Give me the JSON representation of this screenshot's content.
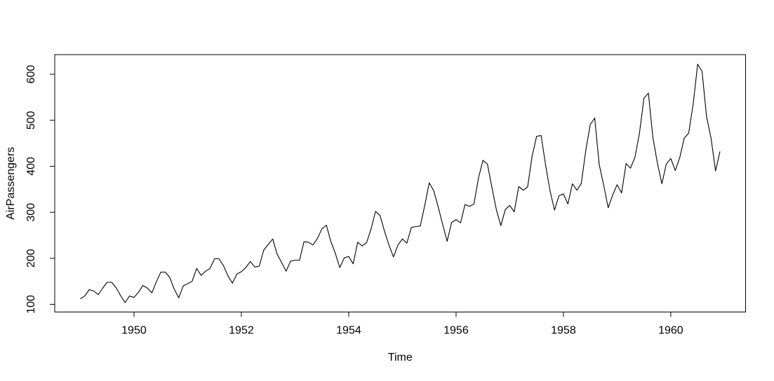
{
  "page": {
    "background": "#ffffff"
  },
  "chart_data": {
    "type": "line",
    "title": "",
    "xlabel": "Time",
    "ylabel": "AirPassengers",
    "x_start": 1949,
    "x_frequency": "monthly",
    "series": [
      {
        "name": "AirPassengers",
        "values": [
          112,
          118,
          132,
          129,
          121,
          135,
          148,
          148,
          136,
          119,
          104,
          118,
          115,
          126,
          141,
          135,
          125,
          149,
          170,
          170,
          158,
          133,
          114,
          140,
          145,
          150,
          178,
          163,
          172,
          178,
          199,
          199,
          184,
          162,
          146,
          166,
          171,
          180,
          193,
          181,
          183,
          218,
          230,
          242,
          209,
          191,
          172,
          194,
          196,
          196,
          236,
          235,
          229,
          243,
          264,
          272,
          237,
          211,
          180,
          201,
          204,
          188,
          235,
          227,
          234,
          264,
          302,
          293,
          259,
          229,
          203,
          229,
          242,
          233,
          267,
          269,
          270,
          315,
          364,
          347,
          312,
          274,
          237,
          278,
          284,
          277,
          317,
          313,
          318,
          374,
          413,
          405,
          355,
          306,
          271,
          306,
          315,
          301,
          356,
          348,
          355,
          422,
          465,
          467,
          404,
          347,
          305,
          336,
          340,
          318,
          362,
          348,
          363,
          435,
          491,
          505,
          404,
          359,
          310,
          337,
          360,
          342,
          406,
          396,
          420,
          472,
          548,
          559,
          463,
          407,
          362,
          405,
          417,
          391,
          419,
          461,
          472,
          535,
          622,
          606,
          508,
          461,
          390,
          432
        ]
      }
    ],
    "xlim": [
      1948.5233,
      1961.3933
    ],
    "ylim": [
      83.28,
      642.72
    ],
    "x_ticks": [
      1950,
      1952,
      1954,
      1956,
      1958,
      1960
    ],
    "y_ticks": [
      100,
      200,
      300,
      400,
      500,
      600
    ],
    "grid": false,
    "legend": "none",
    "frame_box": true,
    "line_color": "#000000",
    "axis_color": "#000000",
    "text_color": "#000000",
    "background": "#ffffff"
  }
}
